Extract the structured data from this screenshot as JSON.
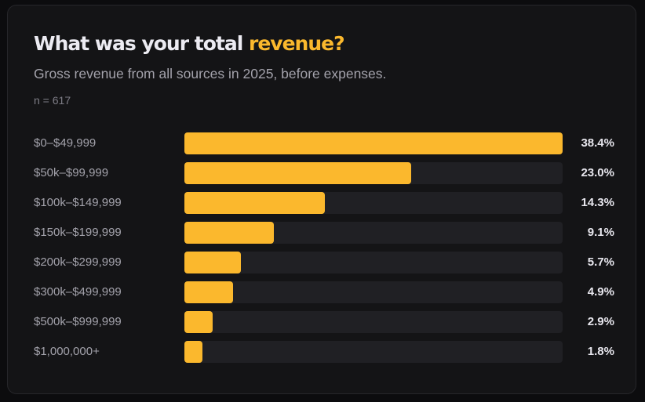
{
  "header": {
    "title_prefix": "What was your total",
    "title_accent": "revenue?",
    "subtitle": "Gross revenue from all sources in 2025, before expenses.",
    "sample_size": "n = 617"
  },
  "colors": {
    "accent": "#fbb82d",
    "track": "#202024",
    "card_background": "#141416",
    "page_background": "#0c0c0e"
  },
  "chart_data": {
    "type": "bar",
    "orientation": "horizontal",
    "categories": [
      "$0–$49,999",
      "$50k–$99,999",
      "$100k–$149,999",
      "$150k–$199,999",
      "$200k–$299,999",
      "$300k–$499,999",
      "$500k–$999,999",
      "$1,000,000+"
    ],
    "values": [
      38.4,
      23.0,
      14.3,
      9.1,
      5.7,
      4.9,
      2.9,
      1.8
    ],
    "value_labels": [
      "38.4%",
      "23.0%",
      "14.3%",
      "9.1%",
      "5.7%",
      "4.9%",
      "2.9%",
      "1.8%"
    ],
    "xlim": [
      0,
      38.4
    ],
    "grid": false,
    "legend": "none"
  }
}
